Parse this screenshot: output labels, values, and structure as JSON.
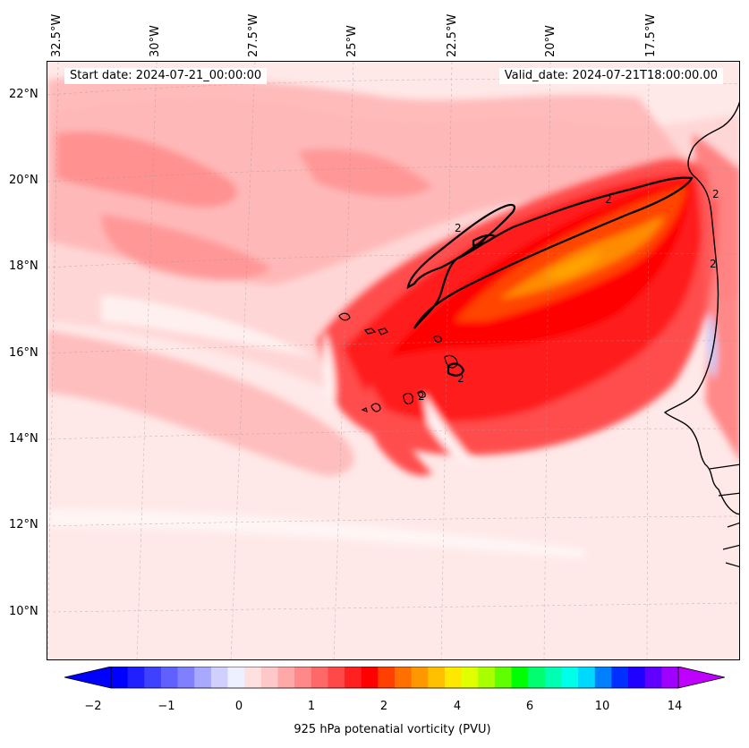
{
  "map": {
    "start_date": "Start date: 2024-07-21_00:00:00",
    "valid_date": "Valid_date: 2024-07-21T18:00:00.00",
    "contour_label": "2",
    "longitude_labels": [
      "32.5°W",
      "30°W",
      "27.5°W",
      "25°W",
      "22.5°W",
      "20°W",
      "17.5°W"
    ],
    "latitude_labels": [
      "22°N",
      "20°N",
      "18°N",
      "16°N",
      "14°N",
      "12°N",
      "10°N"
    ],
    "colors": {
      "background": "#ffe8e8",
      "light_pink": "#ffd6d6",
      "pink": "#ffb3b3",
      "salmon": "#ff8080",
      "red": "#ff4d4d",
      "strong_red": "#ff1a1a",
      "deep_red": "#ff0000",
      "orange_red": "#ff4500",
      "orange": "#ff8c00",
      "pale_blue": "#e8ecff",
      "contour": "#000000"
    }
  },
  "colorbar": {
    "label": "925 hPa potenatial vorticity (PVU)",
    "tick_labels": [
      "−2",
      "−1",
      "0",
      "1",
      "2",
      "4",
      "6",
      "10",
      "14"
    ],
    "tick_values": [
      -2,
      -1,
      0,
      1,
      2,
      4,
      6,
      10,
      14
    ],
    "colors": [
      "#0000ff",
      "#2020ff",
      "#4040ff",
      "#6060ff",
      "#8080ff",
      "#a8a8ff",
      "#d0d0ff",
      "#ecf0ff",
      "#ffe0e0",
      "#ffc8c8",
      "#ffa8a8",
      "#ff8888",
      "#ff6868",
      "#ff4848",
      "#ff2020",
      "#ff0000",
      "#ff4000",
      "#ff7000",
      "#ff9800",
      "#ffc000",
      "#ffe800",
      "#e0ff00",
      "#a8ff00",
      "#60ff00",
      "#00ff00",
      "#00ff70",
      "#00ffb0",
      "#00ffe8",
      "#00d8ff",
      "#0080ff",
      "#0030ff",
      "#2000ff",
      "#6000ff",
      "#a000ff"
    ],
    "extend_low_color": "#0000ff",
    "extend_high_color": "#c000ff"
  }
}
